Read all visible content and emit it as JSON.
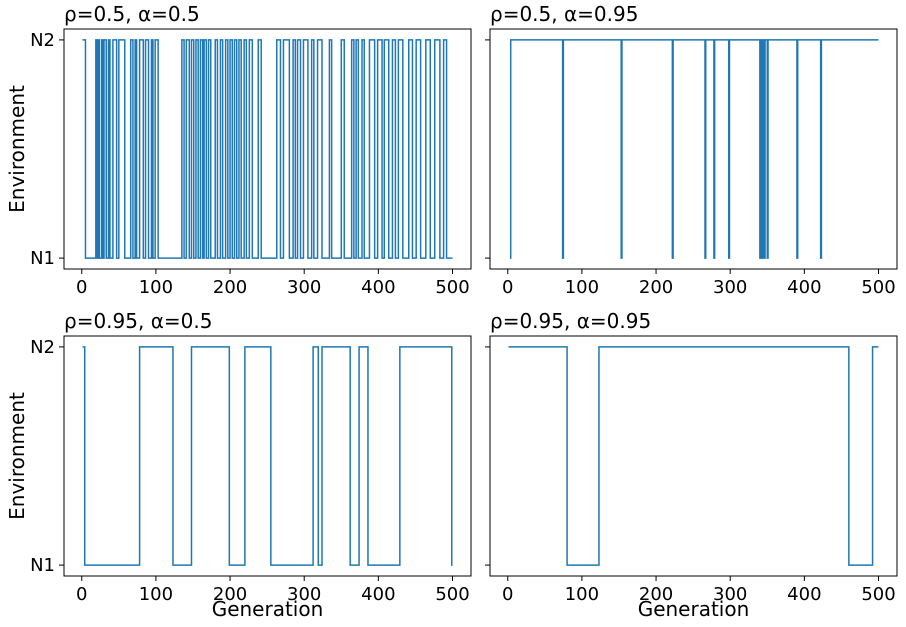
{
  "chart_data": [
    {
      "type": "line",
      "title": "ρ=0.5, α=0.5",
      "ylabel": "Environment",
      "drawstyle": "steps-post",
      "color": "#1f77b4",
      "x": [
        1,
        5,
        19,
        21,
        23,
        24,
        27,
        28,
        30,
        33,
        36,
        38,
        42,
        47,
        50,
        58,
        66,
        69,
        72,
        74,
        78,
        83,
        86,
        90,
        94,
        96,
        99,
        103,
        135,
        138,
        141,
        145,
        148,
        151,
        154,
        157,
        160,
        163,
        165,
        168,
        171,
        174,
        180,
        183,
        187,
        190,
        194,
        197,
        200,
        203,
        206,
        209,
        212,
        215,
        219,
        222,
        226,
        230,
        238,
        242,
        263,
        268,
        272,
        280,
        285,
        288,
        291,
        295,
        299,
        305,
        310,
        313,
        318,
        324,
        334,
        337,
        350,
        354,
        364,
        367,
        370,
        373,
        378,
        381,
        388,
        395,
        399,
        405,
        408,
        414,
        419,
        423,
        427,
        433,
        441,
        446,
        451,
        457,
        464,
        470,
        476,
        483,
        488,
        492,
        500
      ],
      "values": [
        2,
        1,
        2,
        1,
        2,
        1,
        2,
        1,
        2,
        1,
        2,
        1,
        2,
        1,
        2,
        1,
        2,
        1,
        2,
        1,
        2,
        1,
        2,
        1,
        2,
        1,
        2,
        1,
        2,
        1,
        2,
        1,
        2,
        1,
        2,
        1,
        2,
        1,
        2,
        1,
        2,
        1,
        2,
        1,
        2,
        1,
        2,
        1,
        2,
        1,
        2,
        1,
        2,
        1,
        2,
        1,
        2,
        1,
        2,
        1,
        2,
        1,
        2,
        1,
        2,
        1,
        2,
        1,
        2,
        1,
        2,
        1,
        2,
        1,
        2,
        1,
        2,
        1,
        2,
        1,
        2,
        1,
        2,
        1,
        2,
        1,
        2,
        1,
        2,
        1,
        2,
        1,
        2,
        1,
        2,
        1,
        2,
        1,
        2,
        1,
        2,
        1,
        2,
        1,
        1
      ],
      "xlim": [
        -23.95,
        524.95
      ],
      "ylim": [
        0.95,
        2.05
      ],
      "xticks": [
        0,
        100,
        200,
        300,
        400,
        500
      ],
      "yticks": [
        {
          "value": 1,
          "label": "N1"
        },
        {
          "value": 2,
          "label": "N2"
        }
      ]
    },
    {
      "type": "line",
      "title": "ρ=0.5, α=0.95",
      "drawstyle": "steps-post",
      "color": "#1f77b4",
      "x": [
        3,
        4,
        74,
        75,
        153,
        154,
        222,
        223,
        266,
        267,
        278,
        279,
        298,
        299,
        340,
        341,
        343,
        344,
        346,
        347,
        350,
        351,
        390,
        391,
        422,
        423,
        500
      ],
      "values": [
        1,
        2,
        1,
        2,
        1,
        2,
        1,
        2,
        1,
        2,
        1,
        2,
        1,
        2,
        1,
        2,
        1,
        2,
        1,
        2,
        1,
        2,
        1,
        2,
        1,
        2,
        2
      ],
      "xlim": [
        -23.95,
        524.95
      ],
      "ylim": [
        0.95,
        2.05
      ],
      "xticks": [
        0,
        100,
        200,
        300,
        400,
        500
      ],
      "yticks": [
        1,
        2
      ]
    },
    {
      "type": "line",
      "title": "ρ=0.95, α=0.5",
      "ylabel": "Environment",
      "xlabel": "Generation",
      "drawstyle": "steps-post",
      "color": "#1f77b4",
      "x": [
        1,
        4,
        78,
        123,
        148,
        199,
        220,
        255,
        312,
        319,
        324,
        362,
        374,
        386,
        429,
        499,
        500
      ],
      "values": [
        2,
        1,
        2,
        1,
        2,
        1,
        2,
        1,
        2,
        1,
        2,
        1,
        2,
        1,
        2,
        1,
        1
      ],
      "xlim": [
        -23.95,
        524.95
      ],
      "ylim": [
        0.95,
        2.05
      ],
      "xticks": [
        0,
        100,
        200,
        300,
        400,
        500
      ],
      "yticks": [
        {
          "value": 1,
          "label": "N1"
        },
        {
          "value": 2,
          "label": "N2"
        }
      ]
    },
    {
      "type": "line",
      "title": "ρ=0.95, α=0.95",
      "xlabel": "Generation",
      "drawstyle": "steps-post",
      "color": "#1f77b4",
      "x": [
        1,
        80,
        123,
        460,
        492,
        500
      ],
      "values": [
        2,
        1,
        2,
        1,
        2,
        2
      ],
      "xlim": [
        -23.95,
        524.95
      ],
      "ylim": [
        0.95,
        2.05
      ],
      "xticks": [
        0,
        100,
        200,
        300,
        400,
        500
      ],
      "yticks": [
        1,
        2
      ]
    }
  ]
}
